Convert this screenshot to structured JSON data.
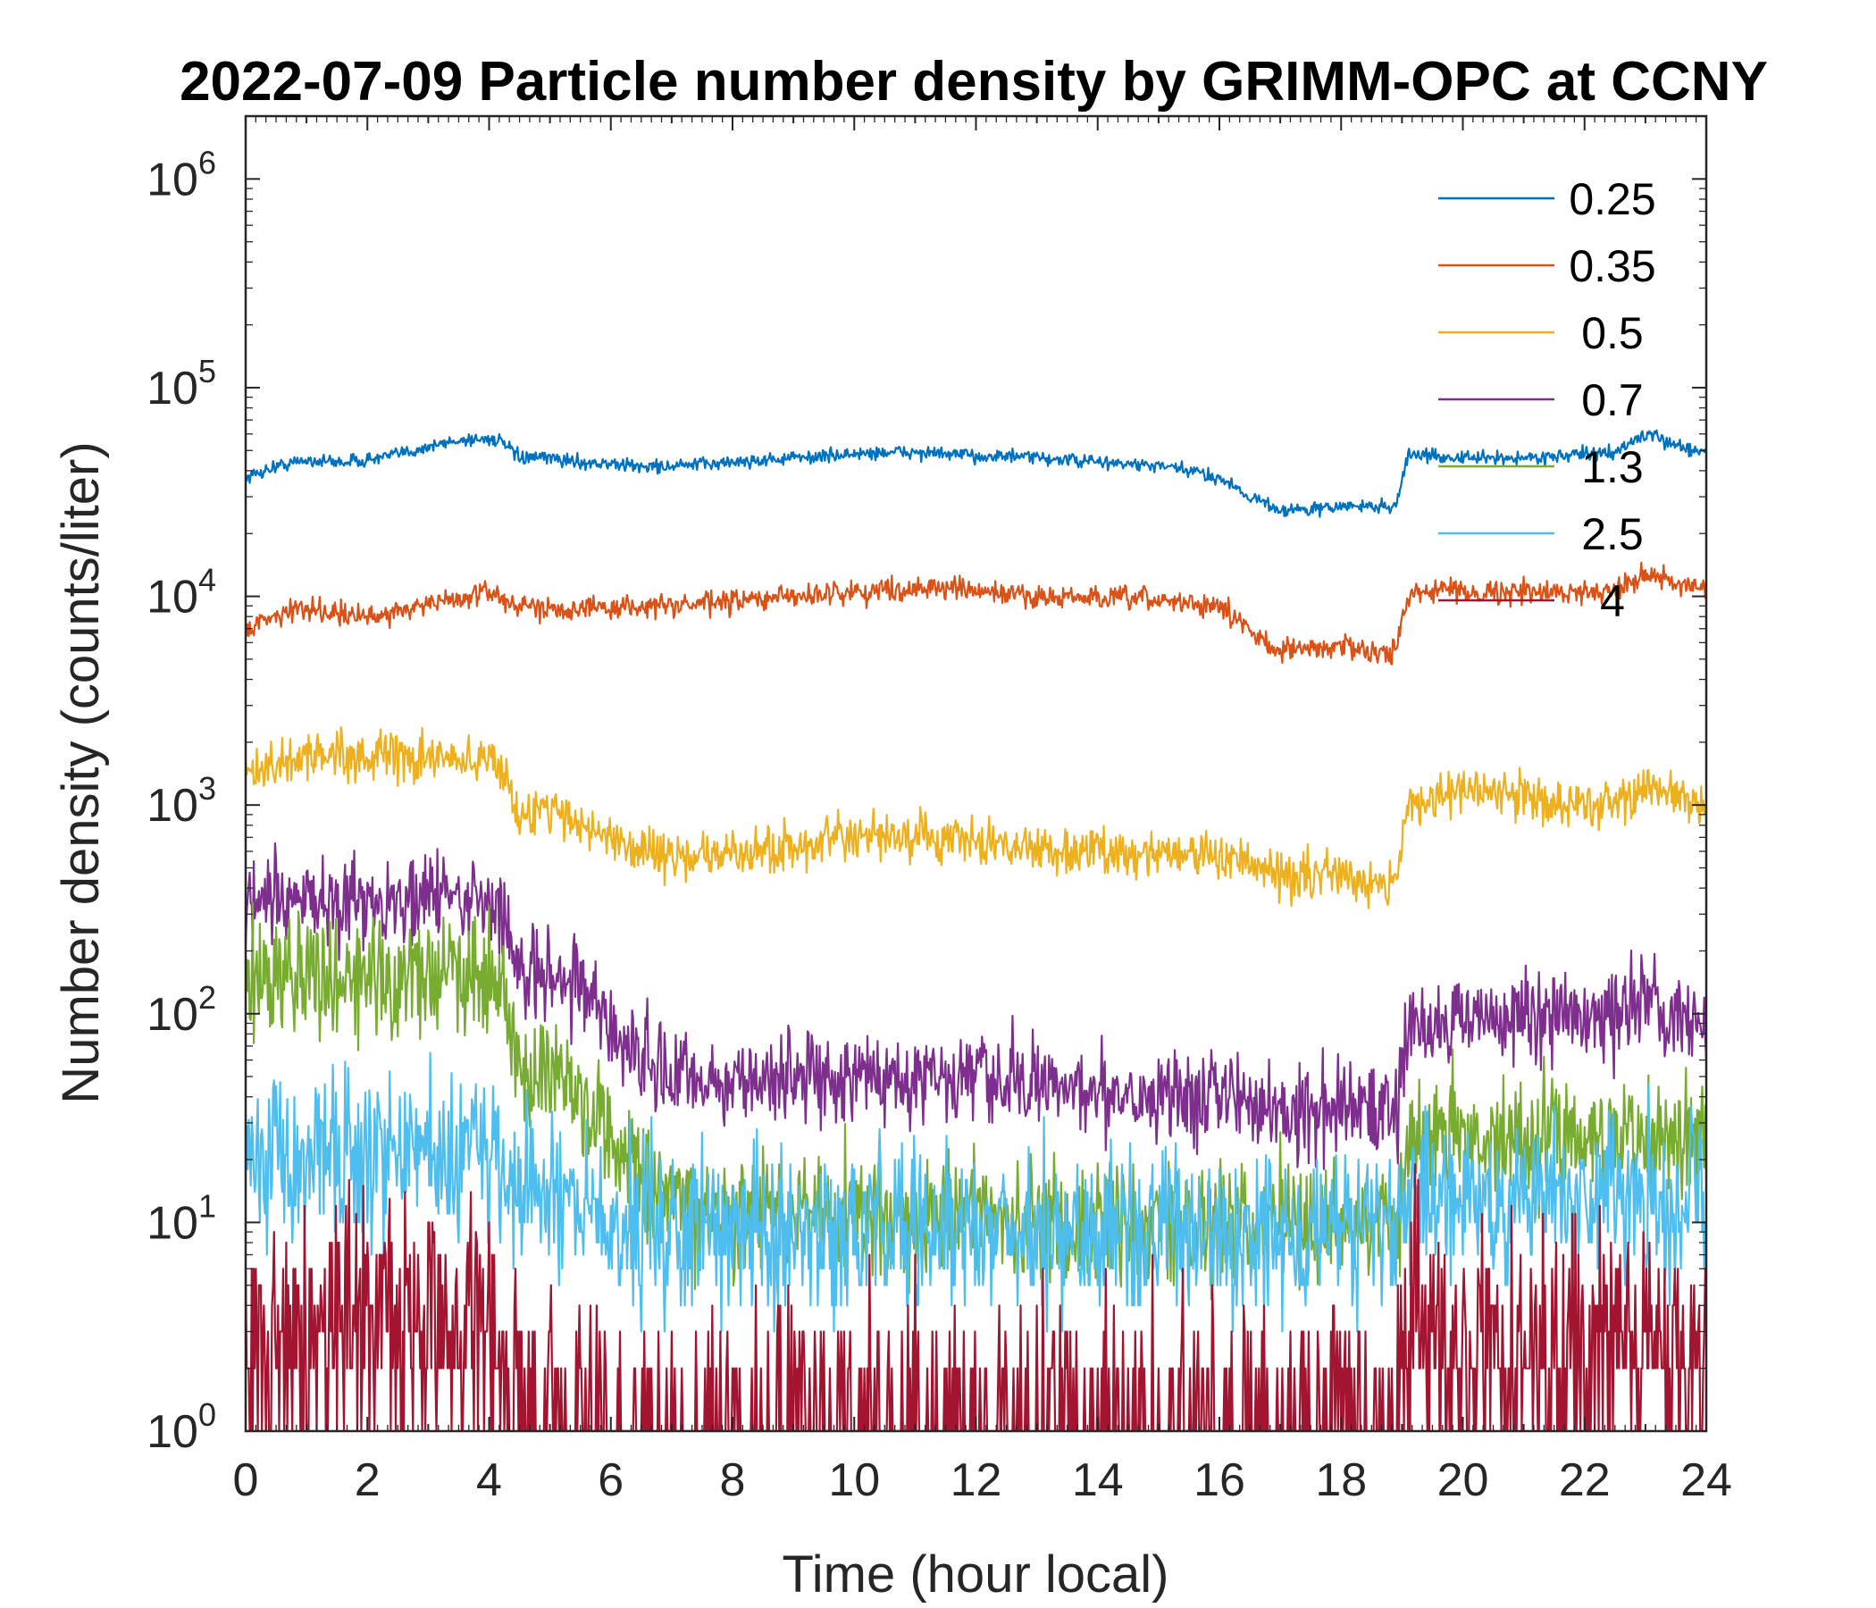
{
  "chart_data": {
    "type": "line",
    "title": "2022-07-09 Particle number density by GRIMM-OPC at CCNY",
    "xlabel": "Time (hour local)",
    "ylabel": "Number density (counts/liter)",
    "xlim": [
      0,
      24
    ],
    "ylim": [
      1,
      2000000
    ],
    "yscale": "log",
    "xticks": [
      0,
      2,
      4,
      6,
      8,
      10,
      12,
      14,
      16,
      18,
      20,
      22,
      24
    ],
    "yticks": [
      {
        "value": 1,
        "base": "10",
        "exp": "0"
      },
      {
        "value": 10,
        "base": "10",
        "exp": "1"
      },
      {
        "value": 100,
        "base": "10",
        "exp": "2"
      },
      {
        "value": 1000,
        "base": "10",
        "exp": "3"
      },
      {
        "value": 10000,
        "base": "10",
        "exp": "4"
      },
      {
        "value": 100000,
        "base": "10",
        "exp": "5"
      },
      {
        "value": 1000000,
        "base": "10",
        "exp": "6"
      }
    ],
    "legend_position": "top-right",
    "x": [
      0,
      0.5,
      1,
      1.5,
      2,
      2.5,
      3,
      3.5,
      4,
      4.2,
      4.5,
      5,
      5.5,
      6,
      6.5,
      7,
      7.5,
      8,
      8.5,
      9,
      9.5,
      10,
      10.5,
      11,
      11.5,
      12,
      12.5,
      13,
      13.5,
      14,
      14.5,
      15,
      15.5,
      16,
      16.3,
      16.5,
      17,
      17.5,
      18,
      18.5,
      18.9,
      19.1,
      19.5,
      20,
      20.5,
      21,
      21.5,
      22,
      22.5,
      23,
      23.5,
      24
    ],
    "series": [
      {
        "name": "0.25",
        "color": "#0072BD",
        "noise": 0.08,
        "values": [
          37000,
          42000,
          45000,
          44000,
          45000,
          48000,
          52000,
          56000,
          57000,
          55000,
          46000,
          46000,
          44000,
          43000,
          42000,
          42000,
          43000,
          44000,
          45000,
          46000,
          47000,
          48000,
          49000,
          49000,
          48000,
          47000,
          47000,
          46000,
          45000,
          44000,
          43000,
          42000,
          40000,
          37000,
          33000,
          30000,
          26000,
          26000,
          27000,
          27000,
          27000,
          48000,
          47000,
          46000,
          46000,
          46000,
          47000,
          48000,
          49000,
          60000,
          53000,
          49000
        ]
      },
      {
        "name": "0.35",
        "color": "#D95319",
        "noise": 0.14,
        "values": [
          7000,
          8200,
          8800,
          8400,
          7800,
          8600,
          9200,
          9700,
          10500,
          10000,
          8800,
          8900,
          8700,
          8800,
          9000,
          9000,
          9200,
          9400,
          9700,
          10000,
          10300,
          10500,
          10700,
          11000,
          11000,
          10500,
          10300,
          10000,
          9800,
          9800,
          9700,
          9600,
          9300,
          8800,
          7800,
          6800,
          5500,
          5600,
          5800,
          5500,
          5300,
          10500,
          10800,
          10600,
          10500,
          10500,
          10400,
          10500,
          10800,
          13000,
          11500,
          10500
        ]
      },
      {
        "name": "0.5",
        "color": "#EDB120",
        "noise": 0.28,
        "values": [
          1350,
          1550,
          1700,
          1800,
          1700,
          1700,
          1650,
          1650,
          1650,
          1600,
          850,
          1000,
          800,
          700,
          620,
          570,
          560,
          580,
          600,
          640,
          660,
          680,
          700,
          700,
          680,
          660,
          640,
          620,
          600,
          600,
          590,
          600,
          590,
          580,
          540,
          500,
          460,
          460,
          470,
          440,
          430,
          1000,
          1100,
          1150,
          1150,
          1100,
          1050,
          1000,
          1000,
          1250,
          1100,
          950
        ]
      },
      {
        "name": "0.7",
        "color": "#7E2F8E",
        "noise": 0.55,
        "values": [
          320,
          330,
          340,
          360,
          350,
          350,
          360,
          350,
          350,
          300,
          150,
          170,
          140,
          85,
          60,
          50,
          48,
          47,
          48,
          50,
          50,
          50,
          50,
          50,
          48,
          47,
          46,
          45,
          44,
          44,
          43,
          42,
          42,
          42,
          40,
          38,
          35,
          35,
          35,
          36,
          35,
          85,
          90,
          95,
          95,
          95,
          95,
          95,
          95,
          110,
          100,
          95
        ]
      },
      {
        "name": "1.3",
        "color": "#77AC30",
        "noise": 0.75,
        "values": [
          160,
          150,
          150,
          155,
          150,
          155,
          160,
          160,
          160,
          140,
          45,
          60,
          40,
          25,
          15,
          12,
          11,
          11,
          11,
          11,
          11,
          11,
          11,
          11,
          11,
          11,
          10,
          10,
          10,
          10,
          10,
          10,
          10,
          10,
          10,
          10,
          10,
          10,
          10,
          10,
          10,
          25,
          26,
          26,
          26,
          26,
          26,
          26,
          26,
          26,
          25,
          24
        ]
      },
      {
        "name": "2.5",
        "color": "#4DBEEE",
        "noise": 1.0,
        "values": [
          22,
          22,
          22,
          22,
          22,
          22,
          22,
          22,
          22,
          20,
          13,
          14,
          12,
          10,
          10,
          9,
          9,
          9,
          9,
          9,
          9,
          9,
          9,
          9,
          9,
          9,
          9,
          9,
          9,
          9,
          9,
          9,
          9,
          9,
          9,
          9,
          9,
          9,
          9,
          9,
          9,
          13,
          13,
          13,
          13,
          13,
          13,
          13,
          13,
          14,
          13,
          13
        ]
      },
      {
        "name": "4",
        "color": "#A2142F",
        "noise": 1.6,
        "values": [
          3,
          3,
          3,
          3,
          3,
          3,
          3,
          3,
          3,
          2,
          1,
          1,
          1,
          1,
          1,
          1,
          1,
          1,
          1,
          1,
          1,
          1,
          1,
          1,
          1,
          1,
          1,
          1,
          1,
          1,
          1,
          1,
          1,
          1,
          1,
          1,
          1,
          1,
          1,
          1,
          1,
          2.5,
          2.5,
          2.5,
          2.5,
          2.5,
          2.5,
          2.5,
          2.5,
          2.5,
          2.5,
          2.5
        ]
      }
    ]
  }
}
